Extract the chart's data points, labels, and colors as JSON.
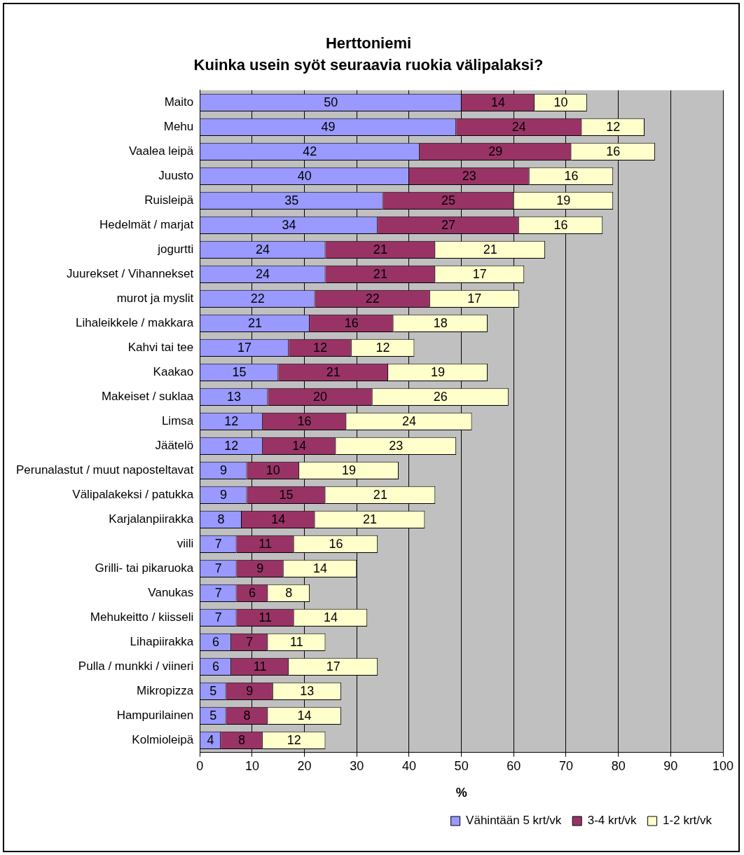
{
  "chart_data": {
    "type": "bar",
    "orientation": "horizontal",
    "stacked": true,
    "title": "Herttoniemi",
    "subtitle": "Kuinka usein syöt seuraavia ruokia välipalaksi?",
    "xlabel": "%",
    "categories": [
      "Maito",
      "Mehu",
      "Vaalea leipä",
      "Juusto",
      "Ruisleipä",
      "Hedelmät / marjat",
      "jogurtti",
      "Juurekset / Vihannekset",
      "murot ja myslit",
      "Lihaleikkele / makkara",
      "Kahvi tai tee",
      "Kaakao",
      "Makeiset / suklaa",
      "Limsa",
      "Jäätelö",
      "Perunalastut / muut naposteltavat",
      "Välipalakeksi / patukka",
      "Karjalanpiirakka",
      "viili",
      "Grilli- tai pikaruoka",
      "Vanukas",
      "Mehukeitto / kiisseli",
      "Lihapiirakka",
      "Pulla / munkki / viineri",
      "Mikropizza",
      "Hampurilainen",
      "Kolmioleipä"
    ],
    "series": [
      {
        "name": "Vähintään 5 krt/vk",
        "color": "#9999ff",
        "values": [
          50,
          49,
          42,
          40,
          35,
          34,
          24,
          24,
          22,
          21,
          17,
          15,
          13,
          12,
          12,
          9,
          9,
          8,
          7,
          7,
          7,
          7,
          6,
          6,
          5,
          5,
          4
        ]
      },
      {
        "name": "3-4 krt/vk",
        "color": "#993366",
        "values": [
          14,
          24,
          29,
          23,
          25,
          27,
          21,
          21,
          22,
          16,
          12,
          21,
          20,
          16,
          14,
          10,
          15,
          14,
          11,
          9,
          6,
          11,
          7,
          11,
          9,
          8,
          8
        ]
      },
      {
        "name": "1-2 krt/vk",
        "color": "#ffffcc",
        "values": [
          10,
          12,
          16,
          16,
          19,
          16,
          21,
          17,
          17,
          18,
          12,
          19,
          26,
          24,
          23,
          19,
          21,
          21,
          16,
          14,
          8,
          14,
          11,
          17,
          13,
          14,
          12
        ]
      }
    ],
    "xlim": [
      0,
      100
    ],
    "xticks": [
      0,
      10,
      20,
      30,
      40,
      50,
      60,
      70,
      80,
      90,
      100
    ],
    "grid": "x",
    "legend": "bottom",
    "data_labels": true
  }
}
